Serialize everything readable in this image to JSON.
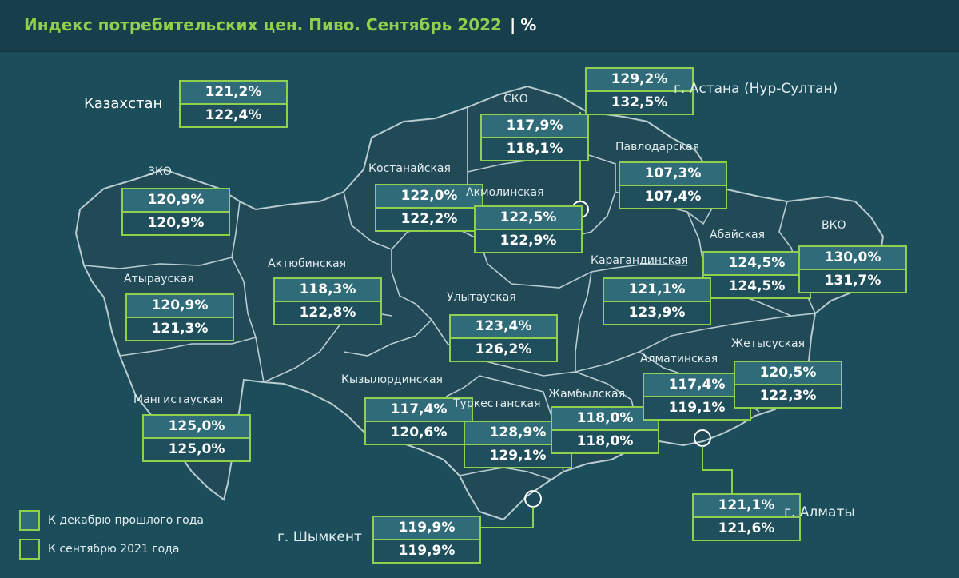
{
  "header": {
    "title": "Индекс потребительских цен. Пиво. Сентябрь 2022",
    "separator": "|",
    "unit": "%"
  },
  "colors": {
    "accent": "#8fd14f",
    "background": "#1b4d5a",
    "region_fill": "#214956",
    "border": "#b9ccd1",
    "box_top": "#2f6b78",
    "box_bottom": "#1f4f5c"
  },
  "country": {
    "label": "Казахстан",
    "dec": "121,2%",
    "sep": "122,4%"
  },
  "regions": {
    "zko": {
      "label": "ЗКО",
      "dec": "120,9%",
      "sep": "120,9%"
    },
    "atyrau": {
      "label": "Атырауская",
      "dec": "120,9%",
      "sep": "121,3%"
    },
    "mangistau": {
      "label": "Мангистауская",
      "dec": "125,0%",
      "sep": "125,0%"
    },
    "aktobe": {
      "label": "Актюбинская",
      "dec": "118,3%",
      "sep": "122,8%"
    },
    "kostanay": {
      "label": "Костанайская",
      "dec": "122,0%",
      "sep": "122,2%"
    },
    "sko": {
      "label": "СКО",
      "dec": "117,9%",
      "sep": "118,1%"
    },
    "akmola": {
      "label": "Акмолинская",
      "dec": "122,5%",
      "sep": "122,9%"
    },
    "pavlodar": {
      "label": "Павлодарская",
      "dec": "107,3%",
      "sep": "107,4%"
    },
    "abai": {
      "label": "Абайская",
      "dec": "124,5%",
      "sep": "124,5%"
    },
    "vko": {
      "label": "ВКО",
      "dec": "130,0%",
      "sep": "131,7%"
    },
    "karaganda": {
      "label": "Карагандинская",
      "dec": "121,1%",
      "sep": "123,9%"
    },
    "ulytau": {
      "label": "Улытауская",
      "dec": "123,4%",
      "sep": "126,2%"
    },
    "kyzylorda": {
      "label": "Кызылординская",
      "dec": "117,4%",
      "sep": "120,6%"
    },
    "turkestan": {
      "label": "Туркестанская",
      "dec": "128,9%",
      "sep": "129,1%"
    },
    "zhambyl": {
      "label": "Жамбылская",
      "dec": "118,0%",
      "sep": "118,0%"
    },
    "almaty_reg": {
      "label": "Алматинская",
      "dec": "117,4%",
      "sep": "119,1%"
    },
    "zhetysu": {
      "label": "Жетысуская",
      "dec": "120,5%",
      "sep": "122,3%"
    }
  },
  "cities": {
    "astana": {
      "label": "г. Астана (Нур-Султан)",
      "dec": "129,2%",
      "sep": "132,5%"
    },
    "almaty": {
      "label": "г. Алматы",
      "dec": "121,1%",
      "sep": "121,6%"
    },
    "shymkent": {
      "label": "г. Шымкент",
      "dec": "119,9%",
      "sep": "119,9%"
    }
  },
  "legend": {
    "dec_label": "К декабрю прошлого года",
    "sep_label": "К сентябрю 2021 года"
  }
}
